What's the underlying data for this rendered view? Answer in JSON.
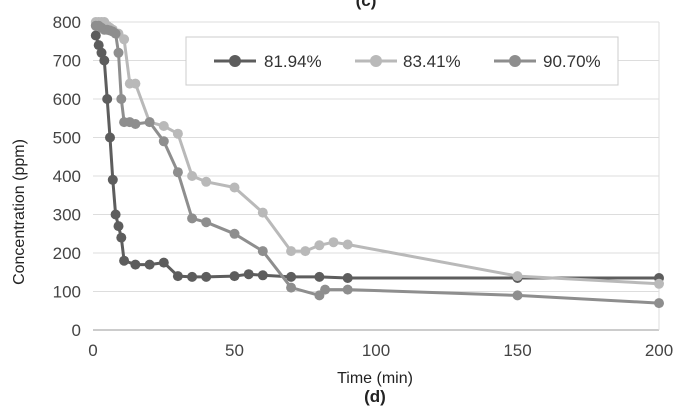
{
  "chart_data": {
    "type": "line",
    "title": "",
    "xlabel": "Time (min)",
    "ylabel": "Concentration (ppm)",
    "xlim": [
      0,
      200
    ],
    "ylim": [
      0,
      800
    ],
    "x_ticks": [
      "0",
      "50",
      "100",
      "150",
      "200"
    ],
    "y_ticks": [
      "0",
      "100",
      "200",
      "300",
      "400",
      "500",
      "600",
      "700",
      "800"
    ],
    "grid": "horizontal",
    "legend_position": "top-right",
    "top_label": "(c)",
    "bottom_label": "(d)",
    "series": [
      {
        "name": "81.94%",
        "color": "#5d5d5d",
        "points": [
          [
            1,
            765
          ],
          [
            2,
            740
          ],
          [
            3,
            720
          ],
          [
            4,
            700
          ],
          [
            5,
            600
          ],
          [
            6,
            500
          ],
          [
            7,
            390
          ],
          [
            8,
            300
          ],
          [
            9,
            270
          ],
          [
            10,
            240
          ],
          [
            11,
            180
          ],
          [
            15,
            170
          ],
          [
            20,
            170
          ],
          [
            25,
            175
          ],
          [
            30,
            140
          ],
          [
            35,
            138
          ],
          [
            40,
            138
          ],
          [
            50,
            140
          ],
          [
            55,
            145
          ],
          [
            60,
            142
          ],
          [
            70,
            138
          ],
          [
            80,
            138
          ],
          [
            90,
            135
          ],
          [
            150,
            135
          ],
          [
            200,
            135
          ]
        ]
      },
      {
        "name": "83.41%",
        "color": "#b9b9b9",
        "points": [
          [
            1,
            800
          ],
          [
            2,
            800
          ],
          [
            3,
            800
          ],
          [
            4,
            800
          ],
          [
            5,
            790
          ],
          [
            6,
            785
          ],
          [
            7,
            780
          ],
          [
            9,
            770
          ],
          [
            11,
            755
          ],
          [
            13,
            640
          ],
          [
            15,
            640
          ],
          [
            20,
            540
          ],
          [
            25,
            530
          ],
          [
            30,
            510
          ],
          [
            35,
            400
          ],
          [
            40,
            385
          ],
          [
            50,
            370
          ],
          [
            60,
            305
          ],
          [
            70,
            205
          ],
          [
            75,
            205
          ],
          [
            80,
            220
          ],
          [
            85,
            228
          ],
          [
            90,
            222
          ],
          [
            150,
            140
          ],
          [
            200,
            120
          ]
        ]
      },
      {
        "name": "90.70%",
        "color": "#8e8e8e",
        "points": [
          [
            1,
            790
          ],
          [
            2,
            790
          ],
          [
            3,
            785
          ],
          [
            4,
            780
          ],
          [
            5,
            780
          ],
          [
            6,
            778
          ],
          [
            7,
            775
          ],
          [
            8,
            770
          ],
          [
            9,
            720
          ],
          [
            10,
            600
          ],
          [
            11,
            540
          ],
          [
            13,
            540
          ],
          [
            15,
            535
          ],
          [
            20,
            540
          ],
          [
            25,
            490
          ],
          [
            30,
            410
          ],
          [
            35,
            290
          ],
          [
            40,
            280
          ],
          [
            50,
            250
          ],
          [
            60,
            205
          ],
          [
            70,
            110
          ],
          [
            80,
            90
          ],
          [
            82,
            105
          ],
          [
            90,
            105
          ],
          [
            150,
            90
          ],
          [
            200,
            70
          ]
        ]
      }
    ]
  }
}
